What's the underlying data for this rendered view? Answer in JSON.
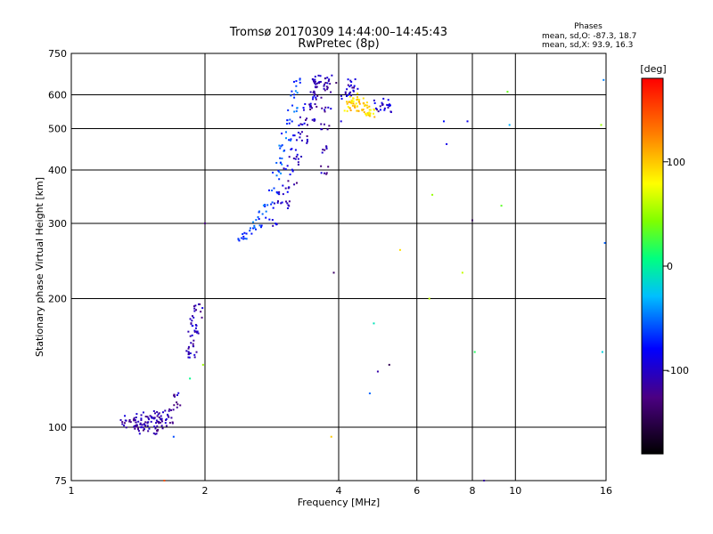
{
  "chart_data": {
    "type": "scatter",
    "title": "Tromsø 20170309 14:44:00–14:45:43",
    "subtitle": "RwPretec (8p)",
    "xlabel": "Frequency [MHz]",
    "ylabel": "Stationary phase Virtual Height [km]",
    "x_scale": "log",
    "y_scale": "log",
    "xlim": [
      1,
      16
    ],
    "ylim": [
      75,
      750
    ],
    "x_ticks": [
      1,
      2,
      4,
      6,
      8,
      10,
      16
    ],
    "y_ticks": [
      75,
      100,
      200,
      300,
      400,
      500,
      600,
      750
    ],
    "phases_header": "Phases",
    "phases_lines": [
      "mean, sd,O: -87.3, 18.7",
      "mean, sd,X:  93.9, 16.3"
    ],
    "colorbar": {
      "label": "[deg]",
      "ticks": [
        100,
        0,
        -100
      ],
      "min": -180,
      "max": 180
    },
    "grid": true,
    "traces": [
      {
        "name_note": "low F-region trace",
        "points": [
          [
            1.32,
            102
          ],
          [
            1.35,
            104
          ],
          [
            1.38,
            101
          ],
          [
            1.4,
            103
          ],
          [
            1.42,
            106
          ],
          [
            1.44,
            102
          ],
          [
            1.46,
            104
          ],
          [
            1.48,
            100
          ],
          [
            1.5,
            105
          ],
          [
            1.52,
            103
          ],
          [
            1.54,
            107
          ],
          [
            1.56,
            104
          ],
          [
            1.58,
            101
          ],
          [
            1.6,
            106
          ],
          [
            1.62,
            104
          ],
          [
            1.64,
            109
          ],
          [
            1.66,
            103
          ],
          [
            1.55,
            98
          ],
          [
            1.45,
            99
          ],
          [
            1.72,
            112
          ],
          [
            1.74,
            120
          ]
        ],
        "phase": -110
      },
      {
        "points": [
          [
            1.84,
            150
          ],
          [
            1.86,
            158
          ],
          [
            1.88,
            165
          ],
          [
            1.9,
            175
          ],
          [
            1.92,
            185
          ],
          [
            1.93,
            192
          ],
          [
            1.87,
            147
          ],
          [
            1.89,
            170
          ]
        ],
        "phase": -105
      },
      {
        "points": [
          [
            2.42,
            278
          ],
          [
            2.48,
            282
          ],
          [
            2.55,
            290
          ],
          [
            2.62,
            300
          ],
          [
            2.7,
            315
          ],
          [
            2.78,
            335
          ],
          [
            2.85,
            360
          ],
          [
            2.9,
            390
          ],
          [
            2.95,
            420
          ],
          [
            3.0,
            450
          ],
          [
            3.05,
            480
          ],
          [
            3.1,
            520
          ],
          [
            3.15,
            560
          ],
          [
            3.2,
            600
          ],
          [
            3.25,
            640
          ]
        ],
        "phase": -60
      },
      {
        "points": [
          [
            2.85,
            300
          ],
          [
            2.92,
            330
          ],
          [
            3.0,
            360
          ],
          [
            3.08,
            400
          ],
          [
            3.16,
            440
          ],
          [
            3.24,
            480
          ],
          [
            3.32,
            520
          ],
          [
            3.4,
            560
          ],
          [
            3.48,
            600
          ],
          [
            3.56,
            640
          ],
          [
            3.6,
            650
          ]
        ],
        "phase": -95
      },
      {
        "points": [
          [
            3.05,
            330
          ],
          [
            3.15,
            370
          ],
          [
            3.25,
            420
          ],
          [
            3.35,
            470
          ],
          [
            3.45,
            520
          ],
          [
            3.52,
            560
          ],
          [
            3.58,
            600
          ],
          [
            3.62,
            640
          ],
          [
            3.68,
            650
          ],
          [
            3.7,
            400
          ],
          [
            3.72,
            450
          ],
          [
            3.74,
            500
          ],
          [
            3.76,
            560
          ],
          [
            3.78,
            620
          ],
          [
            3.8,
            650
          ]
        ],
        "phase": -110
      },
      {
        "points": [
          [
            4.2,
            560
          ],
          [
            4.3,
            580
          ],
          [
            4.4,
            570
          ],
          [
            4.5,
            560
          ],
          [
            4.6,
            550
          ],
          [
            4.7,
            545
          ],
          [
            4.35,
            590
          ],
          [
            4.45,
            575
          ],
          [
            4.55,
            565
          ],
          [
            4.65,
            555
          ],
          [
            4.25,
            570
          ],
          [
            4.8,
            550
          ]
        ],
        "phase": 95
      },
      {
        "points": [
          [
            4.15,
            600
          ],
          [
            4.22,
            620
          ],
          [
            4.28,
            640
          ],
          [
            4.32,
            610
          ],
          [
            4.9,
            570
          ],
          [
            5.0,
            560
          ],
          [
            5.1,
            580
          ],
          [
            5.2,
            555
          ]
        ],
        "phase": -100
      },
      {
        "points": [
          [
            3.95,
            640
          ],
          [
            4.05,
            520
          ],
          [
            3.85,
            95
          ],
          [
            3.9,
            230
          ],
          [
            4.7,
            120
          ],
          [
            4.8,
            175
          ],
          [
            4.9,
            135
          ],
          [
            5.2,
            140
          ],
          [
            5.5,
            260
          ],
          [
            6.4,
            200
          ],
          [
            6.5,
            350
          ],
          [
            6.9,
            520
          ],
          [
            7.0,
            460
          ],
          [
            7.6,
            230
          ],
          [
            7.8,
            520
          ],
          [
            8.0,
            305
          ],
          [
            8.1,
            150
          ],
          [
            8.5,
            75
          ],
          [
            9.3,
            330
          ],
          [
            9.6,
            610
          ],
          [
            9.7,
            510
          ],
          [
            15.8,
            650
          ],
          [
            15.9,
            270
          ],
          [
            15.7,
            150
          ],
          [
            15.6,
            510
          ],
          [
            2.0,
            300
          ],
          [
            1.98,
            140
          ],
          [
            1.62,
            75
          ],
          [
            1.7,
            95
          ],
          [
            1.85,
            130
          ]
        ],
        "phase": 0
      }
    ]
  }
}
